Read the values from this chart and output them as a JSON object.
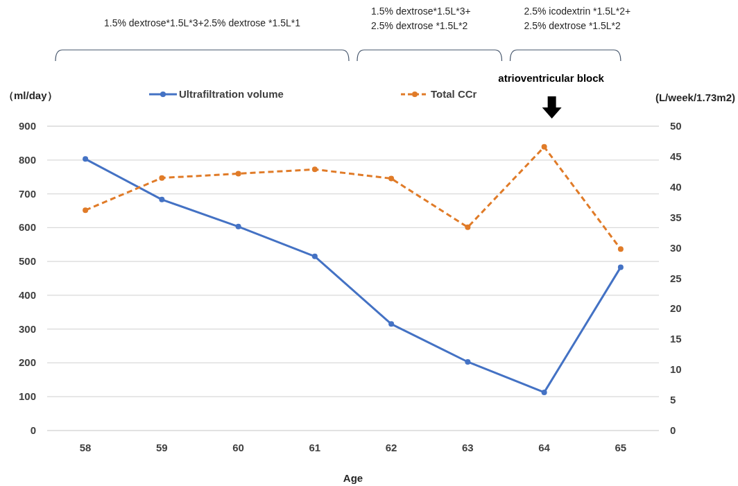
{
  "chart_data": {
    "type": "line",
    "xlabel": "Age",
    "ylabel": "（ml/day）",
    "y2label": "(L/week/1.73m2)",
    "categories": [
      "58",
      "59",
      "60",
      "61",
      "62",
      "63",
      "64",
      "65"
    ],
    "series": [
      {
        "name": "Ultrafiltration volume",
        "color": "#4472c4",
        "line_style": "solid",
        "values": [
          803,
          683,
          603,
          515,
          315,
          203,
          113,
          483
        ]
      },
      {
        "name": "Total CCr",
        "color": "#e07b28",
        "line_style": "dashed",
        "axis": "y2",
        "values": [
          36.2,
          41.5,
          42.2,
          42.9,
          41.4,
          33.4,
          46.6,
          29.8
        ]
      }
    ],
    "ylim": [
      0,
      900
    ],
    "yticks": [
      0,
      100,
      200,
      300,
      400,
      500,
      600,
      700,
      800,
      900
    ],
    "y2lim": [
      0,
      50
    ],
    "y2ticks": [
      0,
      5,
      10,
      15,
      20,
      25,
      30,
      35,
      40,
      45,
      50
    ],
    "grid": "y",
    "legend": "top",
    "marker": "circle",
    "annotations": [
      "1.5% dextrose*1.5L*3+2.5% dextrose *1.5L*1",
      "1.5% dextrose*1.5L*3+\n2.5% dextrose *1.5L*2",
      "2.5% icodextrin *1.5L*2+\n2.5% dextrose *1.5L*2",
      "atrioventricular block"
    ]
  }
}
